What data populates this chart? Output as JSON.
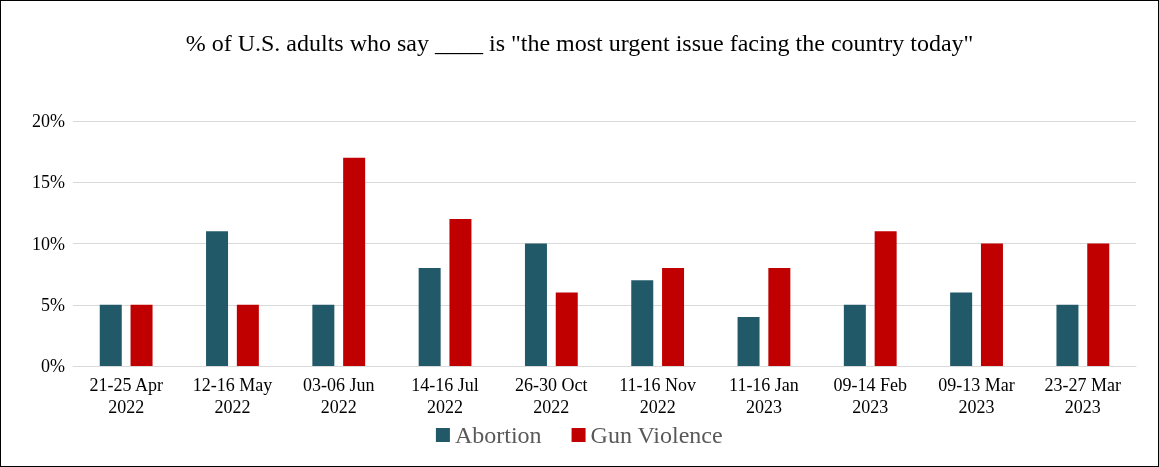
{
  "chart_data": {
    "type": "bar",
    "title": "% of U.S. adults who say ____ is \"the most urgent issue facing the country today\"",
    "categories": [
      "21-25 Apr\n2022",
      "12-16 May\n2022",
      "03-06 Jun\n2022",
      "14-16 Jul\n2022",
      "26-30 Oct\n2022",
      "11-16 Nov\n2022",
      "11-16 Jan\n2023",
      "09-14 Feb\n2023",
      "09-13 Mar\n2023",
      "23-27 Mar\n2023"
    ],
    "series": [
      {
        "name": "Abortion",
        "color": "#215968",
        "values": [
          5,
          11,
          5,
          8,
          10,
          7,
          4,
          5,
          6,
          5
        ]
      },
      {
        "name": "Gun Violence",
        "color": "#c00000",
        "values": [
          5,
          5,
          17,
          12,
          6,
          8,
          8,
          11,
          10,
          10
        ]
      }
    ],
    "ylim": [
      0,
      20
    ],
    "yticks": [
      {
        "value": 0,
        "label": "0%"
      },
      {
        "value": 5,
        "label": "5%"
      },
      {
        "value": 10,
        "label": "10%"
      },
      {
        "value": 15,
        "label": "15%"
      },
      {
        "value": 20,
        "label": "20%"
      }
    ],
    "grid": "y",
    "legend": "bottom"
  }
}
